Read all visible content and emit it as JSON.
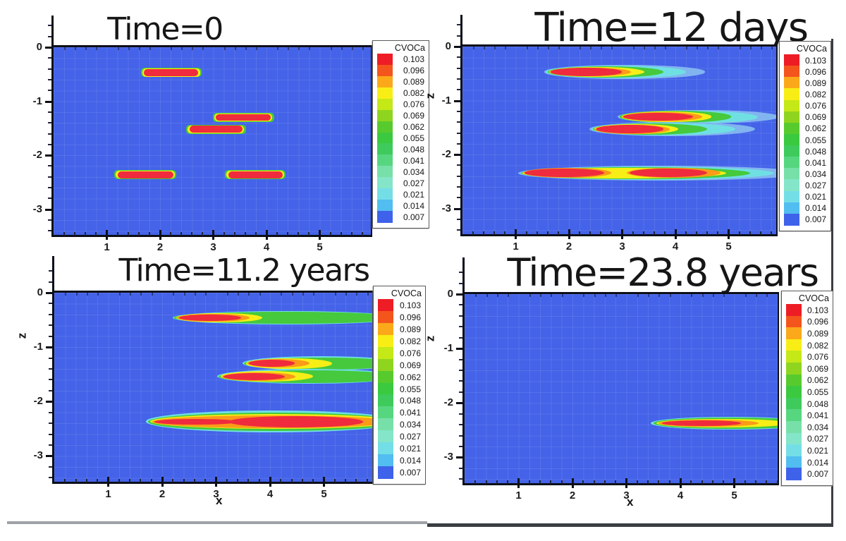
{
  "chart_data": {
    "type": "contour",
    "layout": "2x2 small multiples (filled contour plots of dissolved plume evolution)",
    "variable": "CVOCa",
    "plot_background": "#4463e8",
    "x_axis": {
      "label": "x",
      "ticks": [
        "1",
        "2",
        "3",
        "4",
        "5"
      ],
      "range": [
        0,
        5.92
      ],
      "minor_step": 0.2
    },
    "z_axis": {
      "label": "z",
      "ticks": [
        "0",
        "-1",
        "-2",
        "-3"
      ],
      "range": [
        -3.5,
        0.58
      ],
      "minor_step": 0.2
    },
    "colorbar": {
      "title": "CVOCa",
      "levels": [
        {
          "value": "0.103",
          "color": "#ee1c25"
        },
        {
          "value": "0.096",
          "color": "#f4551c"
        },
        {
          "value": "0.089",
          "color": "#fba91a"
        },
        {
          "value": "0.082",
          "color": "#f8ee15"
        },
        {
          "value": "0.076",
          "color": "#c5e817"
        },
        {
          "value": "0.069",
          "color": "#8fd51f"
        },
        {
          "value": "0.062",
          "color": "#57cb2e"
        },
        {
          "value": "0.055",
          "color": "#3bc93f"
        },
        {
          "value": "0.048",
          "color": "#3ecb5c"
        },
        {
          "value": "0.041",
          "color": "#57d680"
        },
        {
          "value": "0.034",
          "color": "#77e0a8"
        },
        {
          "value": "0.027",
          "color": "#84e5c9"
        },
        {
          "value": "0.021",
          "color": "#74dee6"
        },
        {
          "value": "0.014",
          "color": "#52bdf0"
        },
        {
          "value": "0.007",
          "color": "#3f62ea"
        }
      ]
    },
    "palette": {
      "red": "#ef2b3d",
      "orange": "#fb9b18",
      "yellow": "#f6ee16",
      "green": "#46c93c",
      "cyan": "#6fdfe4",
      "paleblue": "#82b4f0"
    },
    "plume_layer_format": [
      "x0",
      "x1",
      "z_center",
      "half_height",
      "color_key",
      "corner_radius_px_optional"
    ],
    "panels": [
      {
        "title": "Time=0",
        "y_label": "",
        "x_label": "",
        "plumes": [
          [
            1.64,
            2.78,
            -0.47,
            0.085,
            "green",
            5
          ],
          [
            1.67,
            2.75,
            -0.47,
            0.075,
            "yellow",
            5
          ],
          [
            1.7,
            2.72,
            -0.47,
            0.064,
            "red",
            5
          ],
          [
            2.99,
            4.14,
            -1.3,
            0.085,
            "green",
            5
          ],
          [
            3.02,
            4.11,
            -1.3,
            0.075,
            "yellow",
            5
          ],
          [
            3.05,
            4.08,
            -1.3,
            0.064,
            "red",
            5
          ],
          [
            2.49,
            3.61,
            -1.52,
            0.085,
            "green",
            5
          ],
          [
            2.52,
            3.58,
            -1.52,
            0.075,
            "yellow",
            5
          ],
          [
            2.55,
            3.55,
            -1.52,
            0.064,
            "red",
            5
          ],
          [
            1.14,
            2.31,
            -2.36,
            0.085,
            "green",
            5
          ],
          [
            1.17,
            2.28,
            -2.36,
            0.075,
            "yellow",
            5
          ],
          [
            1.2,
            2.25,
            -2.36,
            0.064,
            "red",
            5
          ],
          [
            3.22,
            4.36,
            -2.36,
            0.085,
            "green",
            5
          ],
          [
            3.25,
            4.33,
            -2.36,
            0.075,
            "yellow",
            5
          ],
          [
            3.28,
            4.3,
            -2.36,
            0.064,
            "red",
            5
          ]
        ]
      },
      {
        "title": "Time=12 days",
        "y_label": "z",
        "x_label": "",
        "plumes": [
          [
            1.53,
            4.55,
            -0.47,
            0.125,
            "paleblue"
          ],
          [
            1.56,
            4.2,
            -0.47,
            0.115,
            "cyan"
          ],
          [
            1.6,
            3.78,
            -0.47,
            0.104,
            "green"
          ],
          [
            1.63,
            3.42,
            -0.47,
            0.093,
            "yellow"
          ],
          [
            1.64,
            3.17,
            -0.47,
            0.083,
            "orange"
          ],
          [
            1.66,
            3.0,
            -0.47,
            0.073,
            "red"
          ],
          [
            2.92,
            5.95,
            -1.3,
            0.13,
            "paleblue"
          ],
          [
            2.94,
            5.55,
            -1.3,
            0.118,
            "cyan"
          ],
          [
            2.96,
            5.05,
            -1.3,
            0.106,
            "green"
          ],
          [
            2.99,
            4.68,
            -1.3,
            0.094,
            "yellow"
          ],
          [
            3.0,
            4.5,
            -1.3,
            0.084,
            "orange"
          ],
          [
            3.02,
            4.33,
            -1.3,
            0.074,
            "red"
          ],
          [
            2.39,
            5.5,
            -1.53,
            0.13,
            "paleblue"
          ],
          [
            2.42,
            5.12,
            -1.53,
            0.118,
            "cyan"
          ],
          [
            2.45,
            4.6,
            -1.53,
            0.106,
            "green"
          ],
          [
            2.48,
            4.05,
            -1.53,
            0.094,
            "yellow"
          ],
          [
            2.49,
            3.9,
            -1.53,
            0.084,
            "orange"
          ],
          [
            2.51,
            3.77,
            -1.53,
            0.074,
            "red"
          ],
          [
            1.05,
            6.4,
            -2.34,
            0.135,
            "paleblue"
          ],
          [
            1.08,
            5.85,
            -2.34,
            0.125,
            "cyan"
          ],
          [
            1.1,
            5.4,
            -2.34,
            0.113,
            "green"
          ],
          [
            1.13,
            4.95,
            -2.34,
            0.1,
            "yellow"
          ],
          [
            1.15,
            2.8,
            -2.34,
            0.09,
            "orange"
          ],
          [
            1.17,
            2.66,
            -2.34,
            0.08,
            "red"
          ],
          [
            3.08,
            4.85,
            -2.34,
            0.092,
            "orange"
          ],
          [
            3.14,
            4.6,
            -2.34,
            0.082,
            "red"
          ]
        ]
      },
      {
        "title": "Time=11.2 years",
        "y_label": "z",
        "x_label": "x",
        "plumes": [
          [
            2.19,
            6.4,
            -0.46,
            0.125,
            "cyan"
          ],
          [
            2.22,
            6.4,
            -0.46,
            0.106,
            "green"
          ],
          [
            2.26,
            3.85,
            -0.46,
            0.09,
            "yellow"
          ],
          [
            2.28,
            3.62,
            -0.46,
            0.076,
            "orange"
          ],
          [
            2.31,
            3.46,
            -0.46,
            0.062,
            "red"
          ],
          [
            3.49,
            6.4,
            -1.3,
            0.132,
            "cyan"
          ],
          [
            3.52,
            6.4,
            -1.3,
            0.112,
            "green"
          ],
          [
            3.56,
            5.15,
            -1.3,
            0.094,
            "yellow"
          ],
          [
            3.58,
            4.73,
            -1.3,
            0.079,
            "orange"
          ],
          [
            3.61,
            4.46,
            -1.3,
            0.064,
            "red"
          ],
          [
            3.02,
            6.4,
            -1.54,
            0.136,
            "cyan"
          ],
          [
            3.05,
            6.4,
            -1.54,
            0.116,
            "green"
          ],
          [
            3.09,
            4.8,
            -1.54,
            0.097,
            "yellow"
          ],
          [
            3.11,
            4.47,
            -1.54,
            0.081,
            "orange"
          ],
          [
            3.14,
            4.28,
            -1.54,
            0.066,
            "red"
          ],
          [
            1.7,
            6.4,
            -2.37,
            0.2,
            "cyan"
          ],
          [
            1.74,
            6.4,
            -2.37,
            0.172,
            "green"
          ],
          [
            1.78,
            6.4,
            -2.37,
            0.136,
            "yellow"
          ],
          [
            1.82,
            6.25,
            -2.37,
            0.115,
            "orange"
          ],
          [
            1.86,
            3.4,
            -2.37,
            0.055,
            "red"
          ],
          [
            3.24,
            5.72,
            -2.37,
            0.1,
            "red"
          ]
        ]
      },
      {
        "title": "Time=23.8 years",
        "y_label": "z",
        "x_label": "x",
        "plumes": [
          [
            3.45,
            6.4,
            -2.37,
            0.12,
            "cyan"
          ],
          [
            3.5,
            6.4,
            -2.37,
            0.1,
            "green"
          ],
          [
            3.55,
            6.0,
            -2.37,
            0.082,
            "yellow"
          ],
          [
            3.6,
            5.45,
            -2.37,
            0.065,
            "orange"
          ],
          [
            3.66,
            5.12,
            -2.37,
            0.05,
            "red"
          ]
        ]
      }
    ]
  },
  "page_rules": {
    "left_rule_color": "#9ea1a6",
    "right_rule_color": "#3a3d42"
  }
}
